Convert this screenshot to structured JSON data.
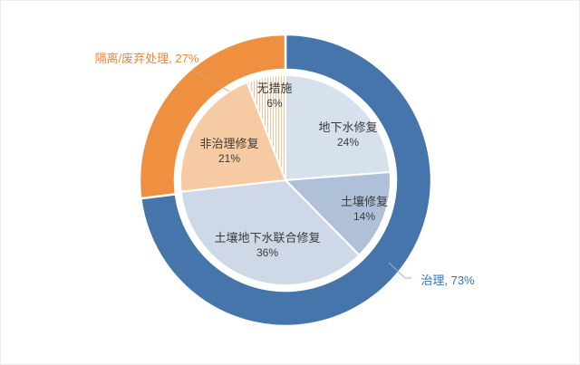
{
  "chart_data": {
    "type": "pie",
    "subtype": "nested-donut",
    "direction": "clockwise",
    "start_angle_deg": 0,
    "grid": false,
    "legend_position": "none",
    "inner_series": {
      "name": "inner-pie",
      "slices": [
        {
          "id": "groundwater-remediation",
          "label": "地下水修复",
          "pct": "24%",
          "value": 24,
          "color": "#D7E0ED"
        },
        {
          "id": "soil-remediation",
          "label": "土壤修复",
          "pct": "14%",
          "value": 14,
          "color": "#AEC1D9"
        },
        {
          "id": "combined-soil-groundwater-remediation",
          "label": "土壤地下水联合修复",
          "pct": "36%",
          "value": 36,
          "color": "#CED8E6"
        },
        {
          "id": "non-treatment-remediation",
          "label": "非治理修复",
          "pct": "21%",
          "value": 21,
          "color": "#F6CBA3"
        },
        {
          "id": "no-measures",
          "label": "无措施",
          "pct": "6%",
          "value": 6,
          "color": "pattern-stripes"
        }
      ]
    },
    "outer_series": {
      "name": "outer-ring",
      "slices": [
        {
          "id": "treatment",
          "label": "治理",
          "pct": "73%",
          "value": 73,
          "color": "#4575AA"
        },
        {
          "id": "isolation-waste-disposal",
          "label": "隔离/废弃处理",
          "pct": "27%",
          "value": 27,
          "color": "#EF9041"
        }
      ]
    },
    "stripe_color": "#ECC39B"
  },
  "labels": {
    "outer_isolation": "隔离/废弃处理, 27%",
    "outer_treatment": "治理, 73%"
  },
  "colors": {
    "outer_blue": "#4575AA",
    "outer_orange": "#EF9041",
    "inner_label_text": "#3B3B3B",
    "treatment_label_text": "#2E74B8",
    "isolation_label_text": "#EE8634",
    "leader_blue": "#97B3D2",
    "leader_orange": "#D9A271"
  }
}
